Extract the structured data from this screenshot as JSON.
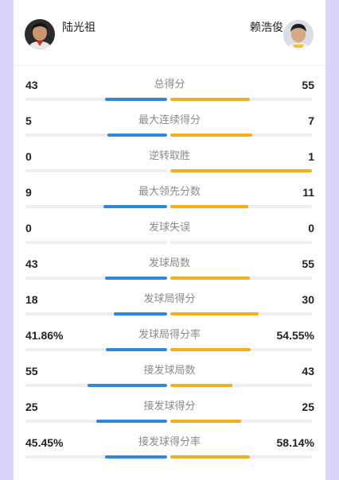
{
  "players": {
    "left": {
      "name": "陆光祖",
      "avatar_icon": "player-avatar-icon"
    },
    "right": {
      "name": "赖浩俊",
      "avatar_icon": "player-avatar-icon"
    }
  },
  "colors": {
    "left": "#2f86dd",
    "right": "#f2ae1c",
    "track": "#eeeeee"
  },
  "stats": [
    {
      "label": "总得分",
      "left": "43",
      "right": "55",
      "left_share": 0.44,
      "right_share": 0.56
    },
    {
      "label": "最大连续得分",
      "left": "5",
      "right": "7",
      "left_share": 0.42,
      "right_share": 0.58
    },
    {
      "label": "逆转取胜",
      "left": "0",
      "right": "1",
      "left_share": 0,
      "right_share": 1
    },
    {
      "label": "最大领先分数",
      "left": "9",
      "right": "11",
      "left_share": 0.45,
      "right_share": 0.55
    },
    {
      "label": "发球失误",
      "left": "0",
      "right": "0",
      "left_share": 0,
      "right_share": 0
    },
    {
      "label": "发球局数",
      "left": "43",
      "right": "55",
      "left_share": 0.44,
      "right_share": 0.56
    },
    {
      "label": "发球局得分",
      "left": "18",
      "right": "30",
      "left_share": 0.375,
      "right_share": 0.625
    },
    {
      "label": "发球局得分率",
      "left": "41.86%",
      "right": "54.55%",
      "left_share": 0.434,
      "right_share": 0.566
    },
    {
      "label": "接发球局数",
      "left": "55",
      "right": "43",
      "left_share": 0.56,
      "right_share": 0.44
    },
    {
      "label": "接发球得分",
      "left": "25",
      "right": "25",
      "left_share": 0.5,
      "right_share": 0.5
    },
    {
      "label": "接发球得分率",
      "left": "45.45%",
      "right": "58.14%",
      "left_share": 0.439,
      "right_share": 0.561
    }
  ]
}
